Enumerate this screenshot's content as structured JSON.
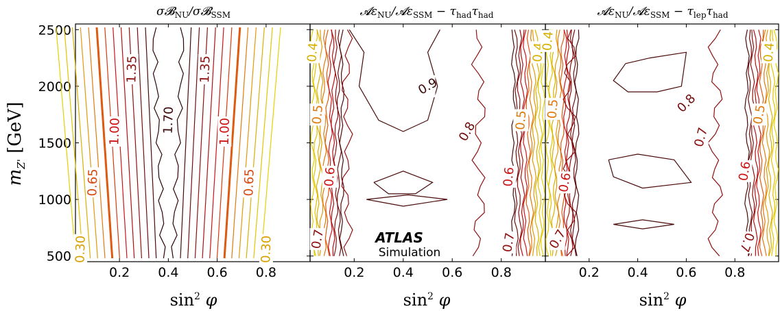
{
  "figure": {
    "ylabel": "m",
    "ylabel_sub": "Z'",
    "ylabel_unit": "[GeV]",
    "atlas_label": "ATLAS",
    "atlas_sublabel": "Simulation",
    "y_ticks": [
      "500",
      "1000",
      "1500",
      "2000",
      "2500"
    ],
    "x_ticks": [
      "0.2",
      "0.4",
      "0.6",
      "0.8"
    ]
  },
  "chart_data": [
    {
      "type": "contour",
      "title": "σB_NU/σB_SSM",
      "xlabel": "sin²φ",
      "ylabel": "m_Z' [GeV]",
      "xlim": [
        0.02,
        0.98
      ],
      "ylim": [
        450,
        2550
      ],
      "levels": [
        {
          "x_low": 0.395,
          "x_high": 0.405,
          "label": "1.70",
          "label_x": 0.39,
          "label_y": 1700,
          "color": "#3a0a0a",
          "bold": false
        },
        {
          "x_low": 0.28,
          "x_high": 0.52,
          "label": "1.35",
          "label_x": 0.54,
          "label_y": 2150,
          "color": "#8a1010",
          "bold": false
        },
        {
          "x_low": 0.2,
          "x_high": 0.6,
          "label": "1.35",
          "label_x": 0.19,
          "label_y": 2180,
          "color": "#8a1010",
          "bold": false
        },
        {
          "x_low": 0.17,
          "x_high": 0.7,
          "label": "1.00",
          "label_x": 0.73,
          "label_y": 1700,
          "color": "#cc1111",
          "bold": true
        },
        {
          "x_low": 0.1,
          "x_high": 0.78,
          "label": "0.65",
          "label_x": 0.8,
          "label_y": 1180,
          "color": "#d84a10",
          "bold": false
        },
        {
          "x_low": 0.05,
          "x_high": 0.88,
          "label": "0.30",
          "label_x": 0.88,
          "label_y": 560,
          "color": "#d8a000",
          "bold": false
        }
      ],
      "labels": [
        "1.70",
        "1.35",
        "1.35",
        "1.00",
        "1.00",
        "0.65",
        "0.65",
        "0.30",
        "0.30"
      ]
    },
    {
      "type": "contour",
      "title": "Aε_NU/Aε_SSM − τ_had τ_had",
      "xlabel": "sin²φ",
      "xlim": [
        0.02,
        0.98
      ],
      "ylim": [
        450,
        2550
      ],
      "labels": [
        "0.9",
        "0.8",
        "0.7",
        "0.7",
        "0.6",
        "0.6",
        "0.5",
        "0.5",
        "0.4",
        "0.4"
      ]
    },
    {
      "type": "contour",
      "title": "Aε_NU/Aε_SSM − τ_lep τ_had",
      "xlabel": "sin²φ",
      "xlim": [
        0.02,
        0.98
      ],
      "ylim": [
        450,
        2550
      ],
      "labels": [
        "0.8",
        "0.7",
        "0.7",
        "0.7",
        "0.6",
        "0.6",
        "0.5",
        "0.5",
        "0.4",
        "0.4"
      ]
    }
  ]
}
